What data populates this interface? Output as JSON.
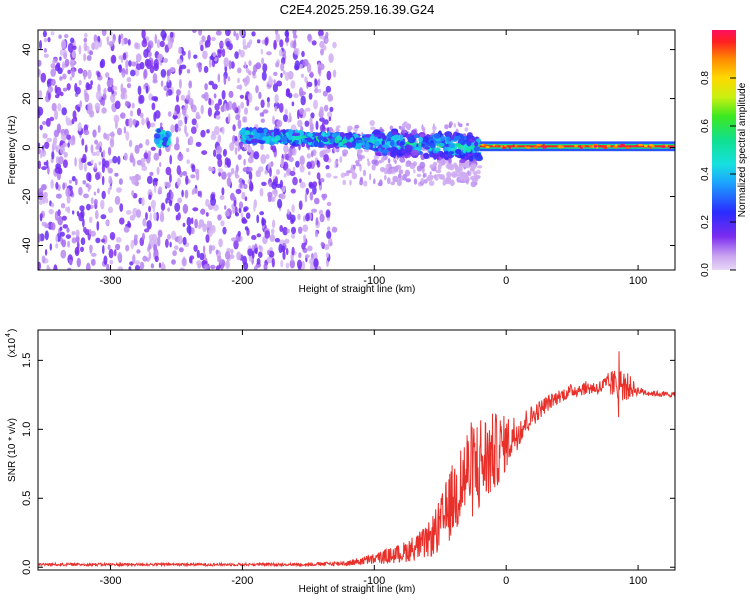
{
  "title": "C2E4.2025.259.16.39.G24",
  "chart_data": [
    {
      "type": "heatmap",
      "name": "spectrogram",
      "xlabel": "Height of straight line (km)",
      "ylabel": "Frequency (Hz)",
      "xlim": [
        -355,
        128
      ],
      "ylim": [
        -50,
        48
      ],
      "xticks": [
        -300,
        -200,
        -100,
        0,
        100
      ],
      "yticks": [
        -40,
        -20,
        0,
        20,
        40
      ],
      "colorbar": {
        "label": "Normalized spectral amplitude",
        "range": [
          0,
          1
        ],
        "ticks": [
          0.0,
          0.2,
          0.4,
          0.6,
          0.8
        ],
        "tick_labels": [
          "0.0",
          "0.2",
          "0.4",
          "0.6",
          "0.8"
        ]
      },
      "regions": [
        {
          "x_range": [
            -355,
            -130
          ],
          "description": "broadband noise",
          "amplitude": 0.12
        },
        {
          "x_range": [
            -265,
            -255
          ],
          "freq": 4,
          "amplitude": 0.5
        },
        {
          "x_range": [
            -200,
            -20
          ],
          "freq_center_start": 5,
          "freq_center_end": 0,
          "amplitude": 0.5
        },
        {
          "x_range": [
            -20,
            128
          ],
          "freq": 0.5,
          "amplitude": 0.95
        }
      ]
    },
    {
      "type": "line",
      "name": "snr",
      "xlabel": "Height of straight line (km)",
      "ylabel": "SNR (10 * v/v)",
      "scale_label": "(x10",
      "scale_exponent": "4",
      "xlim": [
        -355,
        128
      ],
      "ylim": [
        -0.02,
        1.72
      ],
      "xticks": [
        -300,
        -200,
        -100,
        0,
        100
      ],
      "yticks": [
        0.0,
        0.5,
        1.0,
        1.5
      ],
      "ytick_labels": [
        "0.0",
        "0.5",
        "1.0",
        "1.5"
      ],
      "color": "#e8302b",
      "series": [
        {
          "name": "SNR (x10^4)",
          "x": [
            -355,
            -300,
            -250,
            -200,
            -150,
            -120,
            -100,
            -80,
            -60,
            -50,
            -40,
            -30,
            -20,
            -10,
            0,
            10,
            20,
            30,
            40,
            50,
            60,
            70,
            80,
            90,
            100,
            110,
            128
          ],
          "y": [
            0.02,
            0.02,
            0.02,
            0.02,
            0.02,
            0.03,
            0.06,
            0.1,
            0.18,
            0.3,
            0.5,
            0.68,
            0.75,
            0.82,
            0.9,
            1.0,
            1.1,
            1.18,
            1.24,
            1.28,
            1.3,
            1.3,
            1.33,
            1.32,
            1.28,
            1.26,
            1.25
          ],
          "noise": [
            0.01,
            0.01,
            0.01,
            0.01,
            0.01,
            0.02,
            0.04,
            0.07,
            0.12,
            0.2,
            0.28,
            0.35,
            0.38,
            0.3,
            0.2,
            0.12,
            0.08,
            0.06,
            0.05,
            0.05,
            0.05,
            0.05,
            0.1,
            0.12,
            0.03,
            0.02,
            0.02
          ]
        }
      ]
    }
  ]
}
